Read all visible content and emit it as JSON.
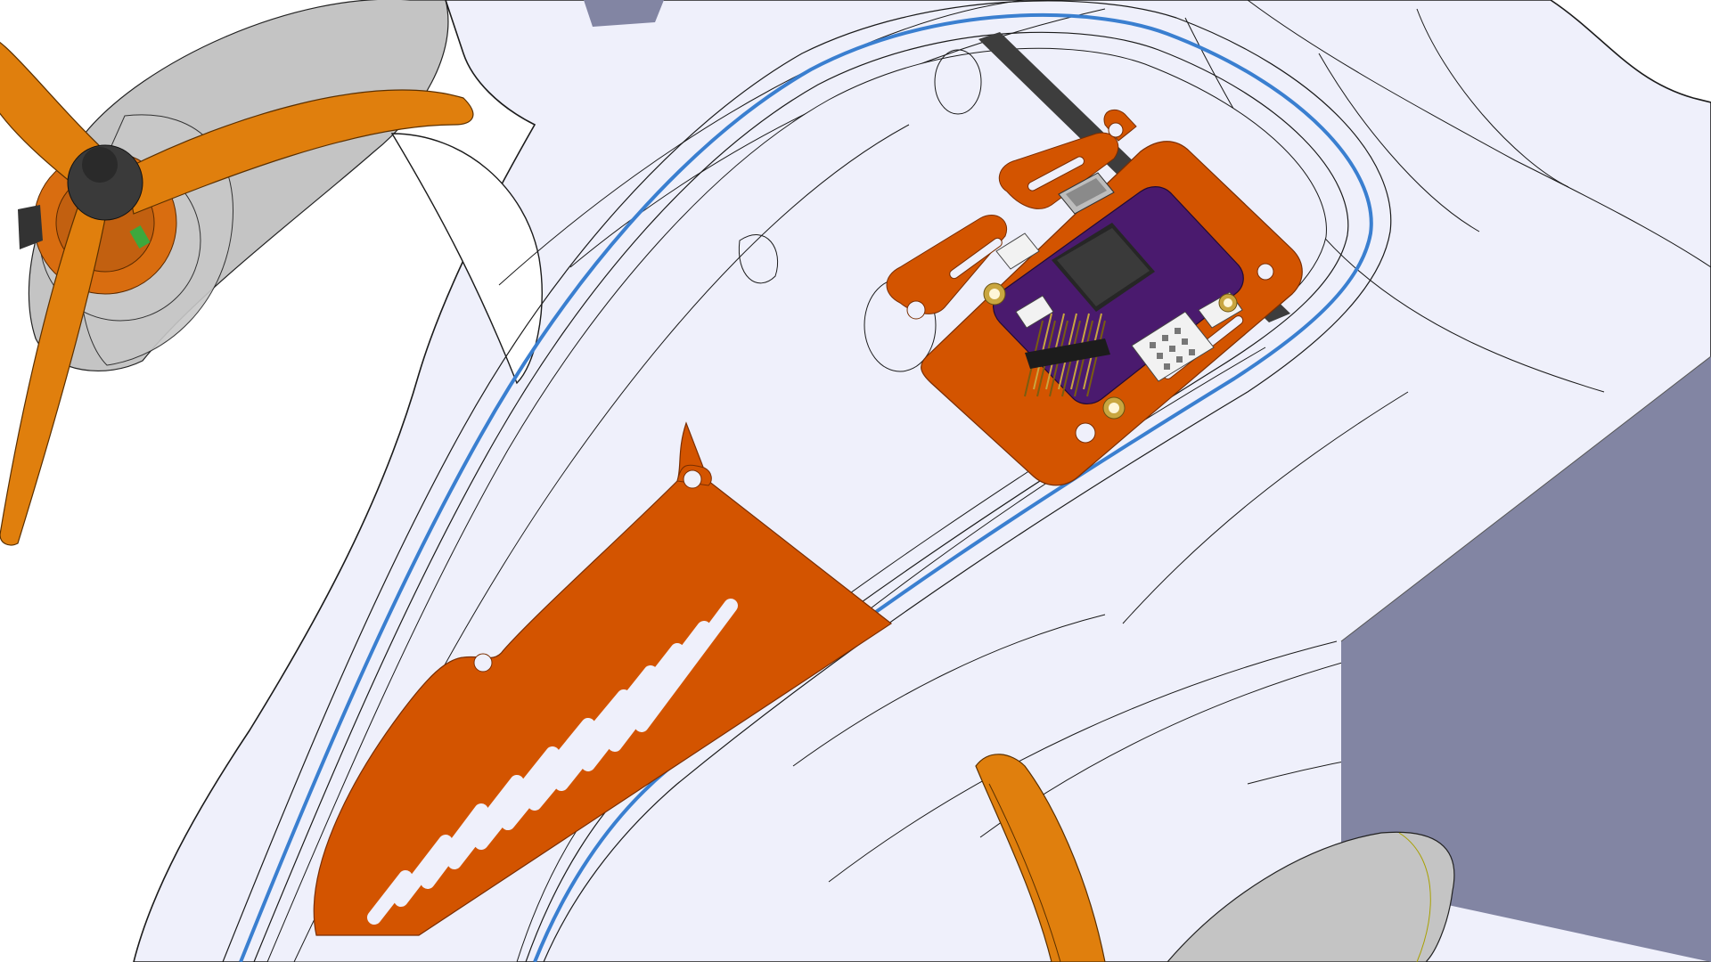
{
  "scene": {
    "subject": "cad-drone-fuselage-assembly",
    "colors": {
      "background": "#ffffff",
      "body": "#eff0fb",
      "body_line": "#1b1b1b",
      "hatch_groove": "#3a7fd0",
      "propeller": "#e07f0d",
      "propeller_dark": "#a85c06",
      "mount_plate": "#d35400",
      "pcb": "#4a1a6e",
      "chip": "#262626",
      "strap": "#3d3d3d",
      "motor_grey": "#c8c8c8",
      "pod_grey": "#c4c4c4",
      "slab": "#8285a3",
      "gold": "#c9a640",
      "connector_white": "#f2f2f2"
    },
    "icons": {
      "propeller_left": "propeller-icon",
      "motor_left": "motor-icon",
      "flight_controller": "circuit-board-icon",
      "usb_port": "usb-port-icon",
      "pin_header": "pin-header-icon",
      "battery_tray": "vented-plate-icon"
    }
  }
}
